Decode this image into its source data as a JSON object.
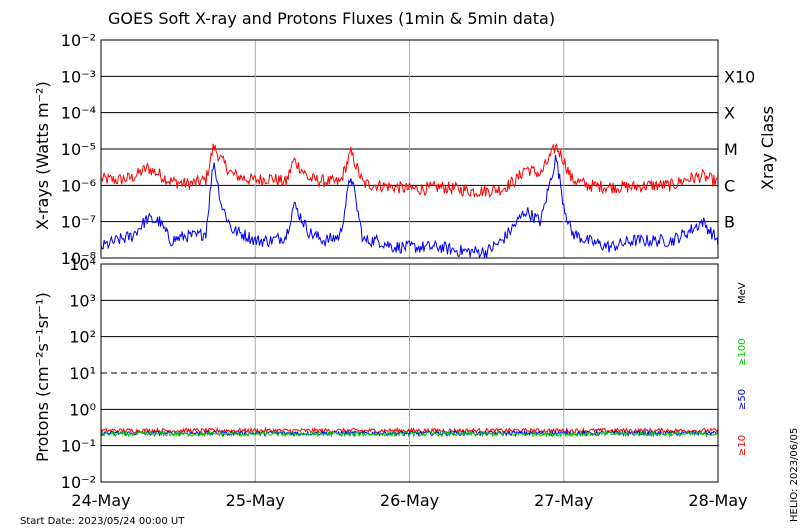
{
  "title": "GOES Soft X-ray and Protons Fluxes   (1min & 5min data)",
  "start_date": "Start Date: 2023/05/24 00:00 UT",
  "side_note": "HELIO: 2023/06/05",
  "chart_data": [
    {
      "type": "line",
      "panel": "xray",
      "ylabel": "X-rays (Watts m⁻²)",
      "y2label": "Xray Class",
      "yscale": "log",
      "ylim": [
        1e-08,
        0.01
      ],
      "xlim": [
        0,
        4
      ],
      "x_categories": [
        "24-May",
        "25-May",
        "26-May",
        "27-May",
        "28-May"
      ],
      "ytick_labels": [
        "10⁻⁸",
        "10⁻⁷",
        "10⁻⁶",
        "10⁻⁵",
        "10⁻⁴",
        "10⁻³",
        "10⁻²"
      ],
      "class_labels": [
        {
          "label": "X10",
          "value": 0.001
        },
        {
          "label": "X",
          "value": 0.0001
        },
        {
          "label": "M",
          "value": 1e-05
        },
        {
          "label": "C",
          "value": 1e-06
        },
        {
          "label": "B",
          "value": 1e-07
        }
      ],
      "series": [
        {
          "id": "long",
          "color": "#ff0000",
          "x": [
            0,
            0.1,
            0.2,
            0.3,
            0.38,
            0.45,
            0.55,
            0.62,
            0.68,
            0.73,
            0.78,
            0.85,
            0.95,
            1.0,
            1.1,
            1.2,
            1.25,
            1.35,
            1.45,
            1.55,
            1.62,
            1.7,
            1.8,
            1.9,
            2.0,
            2.1,
            2.2,
            2.3,
            2.4,
            2.5,
            2.6,
            2.7,
            2.75,
            2.85,
            2.95,
            3.0,
            3.05,
            3.15,
            3.3,
            3.45,
            3.55,
            3.7,
            3.8,
            3.9,
            4.0
          ],
          "values": [
            1.5e-06,
            1.4e-06,
            1.6e-06,
            3e-06,
            2e-06,
            1.3e-06,
            1.1e-06,
            1.2e-06,
            1.4e-06,
            1.2e-05,
            5e-06,
            2e-06,
            1.5e-06,
            1.4e-06,
            1.6e-06,
            1.2e-06,
            5e-06,
            1.5e-06,
            1.3e-06,
            1.2e-06,
            8e-06,
            1.1e-06,
            1e-06,
            9e-07,
            8e-07,
            8e-07,
            9e-07,
            8e-07,
            7e-07,
            7e-07,
            8e-07,
            1.5e-06,
            3e-06,
            2e-06,
            1.2e-05,
            5e-06,
            1.5e-06,
            1e-06,
            9e-07,
            9e-07,
            1e-06,
            1e-06,
            1.5e-06,
            1.8e-06,
            1.2e-06
          ]
        },
        {
          "id": "short",
          "color": "#0000ff",
          "x": [
            0,
            0.1,
            0.2,
            0.3,
            0.38,
            0.45,
            0.55,
            0.62,
            0.68,
            0.73,
            0.78,
            0.85,
            0.95,
            1.0,
            1.1,
            1.2,
            1.25,
            1.35,
            1.45,
            1.55,
            1.62,
            1.7,
            1.8,
            1.9,
            2.0,
            2.1,
            2.2,
            2.3,
            2.4,
            2.5,
            2.6,
            2.7,
            2.75,
            2.85,
            2.95,
            3.0,
            3.05,
            3.15,
            3.3,
            3.45,
            3.55,
            3.7,
            3.8,
            3.9,
            4.0
          ],
          "values": [
            2e-08,
            3e-08,
            4e-08,
            1.2e-07,
            1e-07,
            3e-08,
            4e-08,
            4e-08,
            5e-08,
            5e-06,
            3e-07,
            6e-08,
            4e-08,
            3e-08,
            3e-08,
            4e-08,
            3e-07,
            5e-08,
            3e-08,
            4e-08,
            2e-06,
            3e-08,
            3e-08,
            2e-08,
            2e-08,
            2e-08,
            2e-08,
            1.6e-08,
            1.5e-08,
            1.5e-08,
            3e-08,
            1e-07,
            2e-07,
            1e-07,
            6e-06,
            3e-07,
            5e-08,
            3e-08,
            2e-08,
            3e-08,
            3e-08,
            3e-08,
            5e-08,
            1e-07,
            3e-08
          ]
        }
      ]
    },
    {
      "type": "line",
      "panel": "protons",
      "ylabel": "Protons (cm⁻²s⁻¹sr⁻¹)",
      "y2label": "MeV",
      "yscale": "log",
      "ylim": [
        0.01,
        10000
      ],
      "xlim": [
        0,
        4
      ],
      "x_categories": [
        "24-May",
        "25-May",
        "26-May",
        "27-May",
        "28-May"
      ],
      "ytick_labels": [
        "10⁻²",
        "10⁻¹",
        "10⁰",
        "10¹",
        "10²",
        "10³",
        "10⁴"
      ],
      "threshold": {
        "value": 10,
        "style": "dashed"
      },
      "series": [
        {
          "id": "ge10",
          "name": "≥10",
          "color": "#ff0000",
          "x": [
            0,
            4
          ],
          "values": [
            0.26,
            0.26
          ]
        },
        {
          "id": "ge50",
          "name": "≥50",
          "color": "#0000ff",
          "x": [
            0,
            4
          ],
          "values": [
            0.22,
            0.22
          ]
        },
        {
          "id": "ge100",
          "name": "≥100",
          "color": "#00cc00",
          "x": [
            0,
            4
          ],
          "values": [
            0.21,
            0.21
          ]
        }
      ]
    }
  ]
}
